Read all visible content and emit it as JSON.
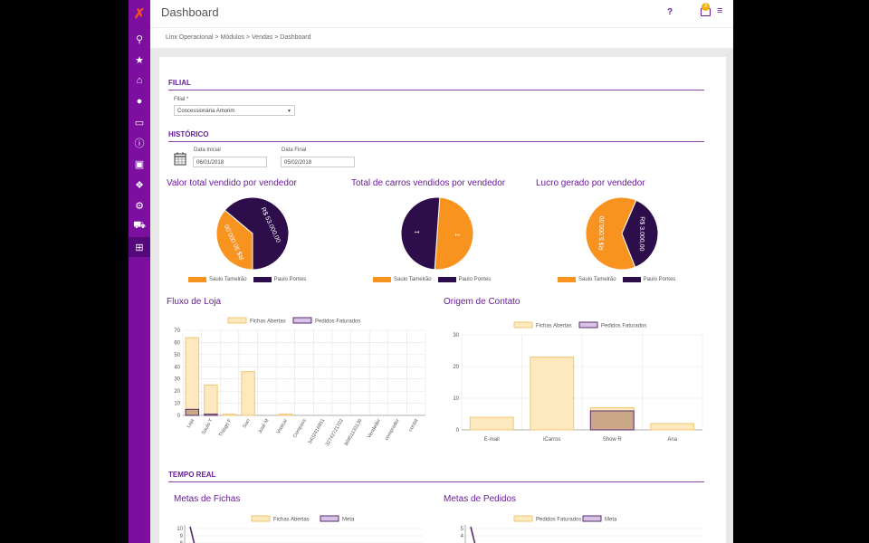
{
  "app": {
    "title": "Dashboard",
    "help": "?",
    "notification_count": "3",
    "menu_icon": "menu-icon",
    "logo_icon": "linx-logo-icon"
  },
  "breadcrumb": "Linx Operacional > Módulos > Vendas > Dashboard",
  "sidebar": {
    "items": [
      {
        "icon": "search-icon",
        "glyph": "⚲"
      },
      {
        "icon": "star-icon",
        "glyph": "★"
      },
      {
        "icon": "bank-icon",
        "glyph": "⌂"
      },
      {
        "icon": "user-icon",
        "glyph": "●"
      },
      {
        "icon": "card-icon",
        "glyph": "▭"
      },
      {
        "icon": "info-icon",
        "glyph": "ⓘ"
      },
      {
        "icon": "monitor-icon",
        "glyph": "▣"
      },
      {
        "icon": "cubes-icon",
        "glyph": "❖"
      },
      {
        "icon": "gears-icon",
        "glyph": "⚙"
      },
      {
        "icon": "car-icon",
        "glyph": "⛟"
      },
      {
        "icon": "cart-icon",
        "glyph": "⊞"
      }
    ]
  },
  "filial": {
    "section": "FILIAL",
    "label": "Filial *",
    "value": "Concessionária Amorim"
  },
  "historico": {
    "section": "HISTÓRICO",
    "data_inicial_label": "Data Inicial",
    "data_inicial_value": "06/01/2018",
    "data_final_label": "Data Final",
    "data_final_value": "05/02/2018"
  },
  "tempo_real": {
    "section": "TEMPO REAL"
  },
  "colors": {
    "orange": "#f7931e",
    "purple": "#2e0e4a",
    "light_fill": "#fde9bd",
    "light_stroke": "#f0c674",
    "dark_fill": "#c9a787",
    "dark_stroke": "#5a2b6e"
  },
  "chart_data": [
    {
      "type": "pie",
      "title": "Valor total vendido por vendedor",
      "slices": [
        {
          "label": "Saulo Tamelrão",
          "value": 30000,
          "text": "R$ 30.000,00"
        },
        {
          "label": "Paulo Pontes",
          "value": 53000,
          "text": "R$ 53.000,00"
        }
      ],
      "legend": [
        "Saulo Tamelrão",
        "Paulo Pontes"
      ]
    },
    {
      "type": "pie",
      "title": "Total de carros vendidos por vendedor",
      "slices": [
        {
          "label": "Saulo Tamelrão",
          "value": 1,
          "text": "1"
        },
        {
          "label": "Paulo Pontes",
          "value": 1,
          "text": "1"
        }
      ],
      "legend": [
        "Saulo Tamelrão",
        "Paulo Pontes"
      ]
    },
    {
      "type": "pie",
      "title": "Lucro gerado por vendedor",
      "slices": [
        {
          "label": "Saulo Tamelrão",
          "value": 5000,
          "text": "R$ 5.000,00"
        },
        {
          "label": "Paulo Pontes",
          "value": 3000,
          "text": "R$ 3.000,00"
        }
      ],
      "legend": [
        "Saulo Tamelrão",
        "Paulo Pontes"
      ]
    },
    {
      "type": "bar",
      "title": "Fluxo de Loja",
      "categories": [
        "Loja",
        "Saulo T",
        "Thiago F",
        "Saci",
        "José M",
        "Visitcar",
        "Compass",
        "5432416951",
        "32742721702",
        "80451133136",
        "Vendedor",
        "comprador",
        "contat"
      ],
      "series": [
        {
          "name": "Fichas Abertas",
          "values": [
            64,
            25,
            1,
            36,
            0,
            1,
            0,
            0,
            0,
            0,
            0,
            0,
            0
          ]
        },
        {
          "name": "Pedidos Faturados",
          "values": [
            5,
            1,
            0,
            0,
            0,
            0,
            0,
            0,
            0,
            0,
            0,
            0,
            0
          ]
        }
      ],
      "yticks": [
        0,
        10,
        20,
        30,
        40,
        50,
        60,
        70
      ],
      "ylim": [
        0,
        70
      ]
    },
    {
      "type": "bar",
      "title": "Origem de Contato",
      "categories": [
        "E-mail",
        "iCarros",
        "Show R",
        "Ana"
      ],
      "series": [
        {
          "name": "Fichas Abertas",
          "values": [
            4,
            23,
            7,
            2
          ]
        },
        {
          "name": "Pedidos Faturados",
          "values": [
            0,
            0,
            6,
            0
          ]
        }
      ],
      "yticks": [
        0,
        10,
        20,
        30
      ],
      "ylim": [
        0,
        30
      ]
    },
    {
      "type": "line",
      "title": "Metas de Fichas",
      "legend": [
        "Fichas Abertas",
        "Meta"
      ],
      "yticks": [
        10,
        9,
        8
      ]
    },
    {
      "type": "line",
      "title": "Metas de Pedidos",
      "legend": [
        "Pedidos Faturados",
        "Meta"
      ],
      "yticks": [
        5,
        4
      ]
    }
  ]
}
